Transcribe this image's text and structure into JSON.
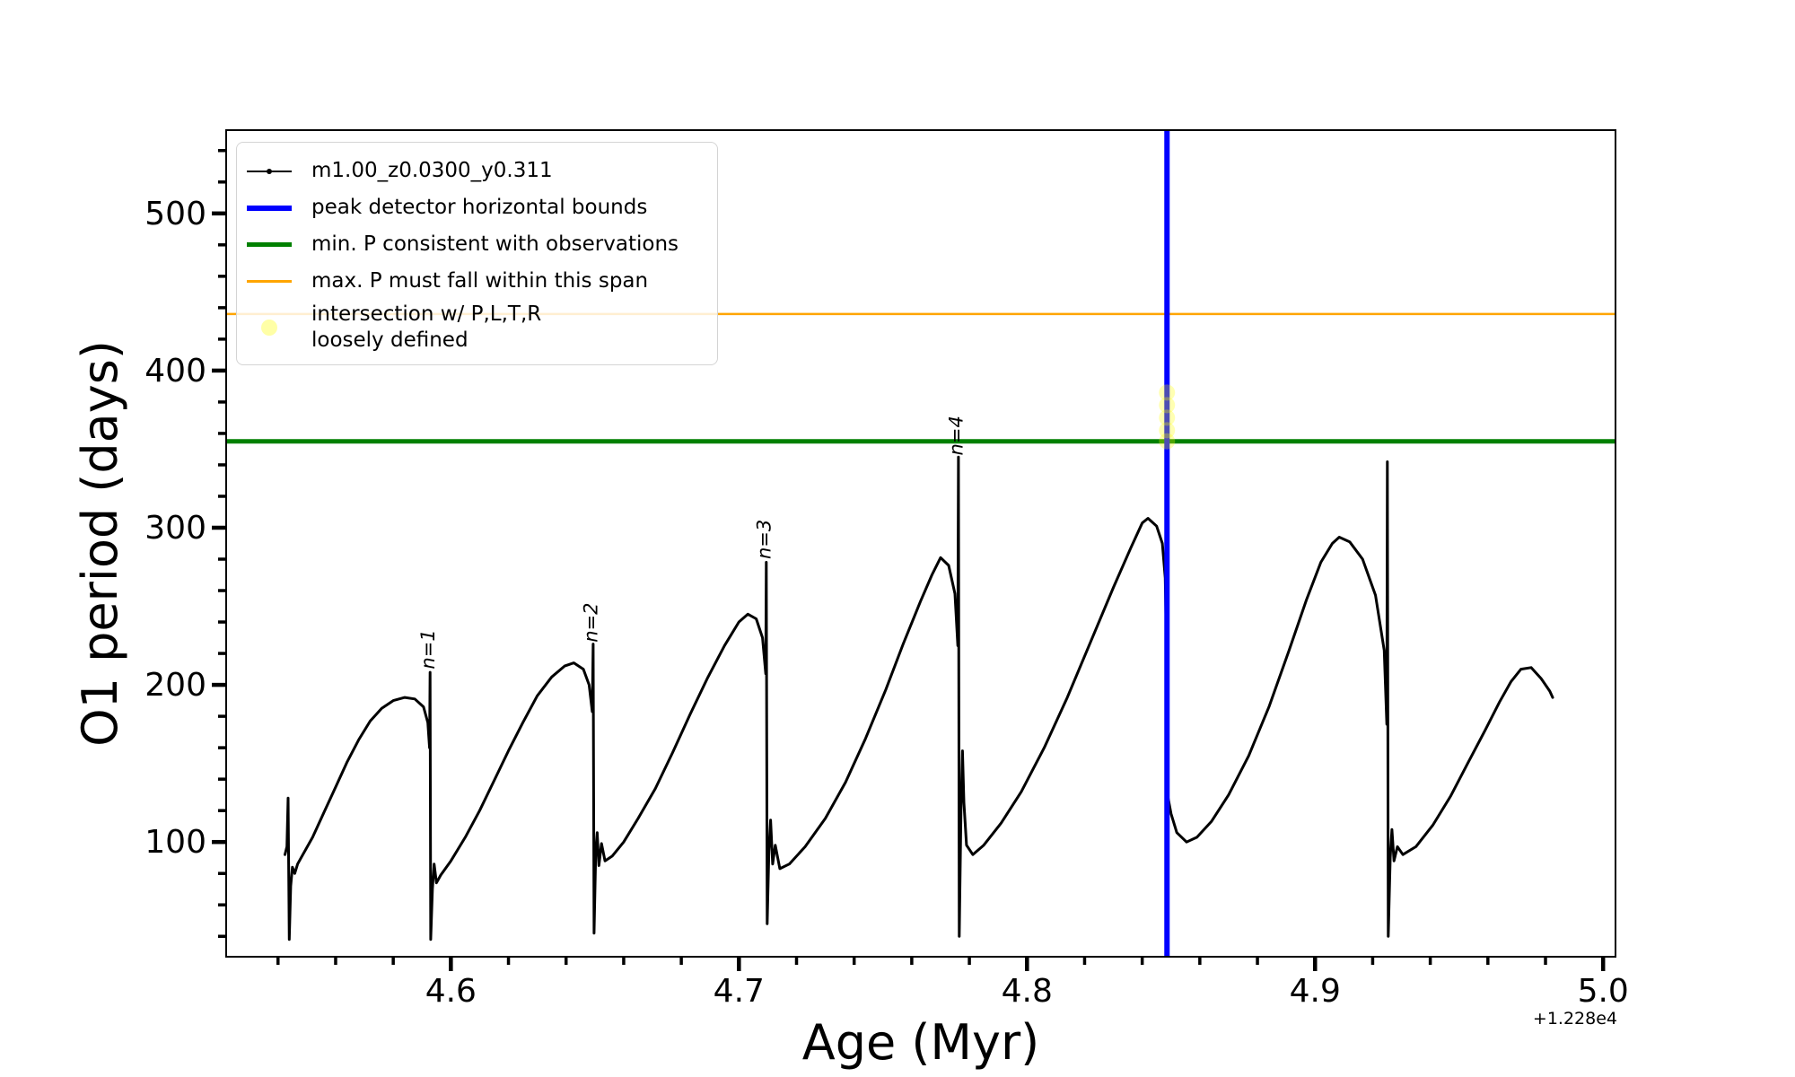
{
  "chart_data": {
    "type": "line",
    "title": "",
    "xlabel": "Age (Myr)",
    "ylabel": "O1 period (days)",
    "x_offset_text": "+1.228e4",
    "xlim": [
      4.522,
      5.0043
    ],
    "ylim": [
      27,
      553
    ],
    "xticks": [
      4.6,
      4.7,
      4.8,
      4.9,
      5.0
    ],
    "xtick_labels": [
      "4.6",
      "4.7",
      "4.8",
      "4.9",
      "5.0"
    ],
    "x_minor_step": 0.02,
    "yticks": [
      100,
      200,
      300,
      400,
      500
    ],
    "ytick_labels": [
      "100",
      "200",
      "300",
      "400",
      "500"
    ],
    "y_minor_step": 20,
    "grid": false,
    "legend": {
      "position": "upper left",
      "entries": [
        {
          "label": "m1.00_z0.0300_y0.311",
          "handle": "line-with-dot-marker",
          "color": "#000000"
        },
        {
          "label": "peak detector horizontal bounds",
          "handle": "thick-line",
          "color": "#0000ff"
        },
        {
          "label": "min. P consistent with observations",
          "handle": "thick-line",
          "color": "#008000"
        },
        {
          "label": "max. P must fall within this span",
          "handle": "thin-line",
          "color": "#ffa500"
        },
        {
          "label": "intersection w/ P,L,T,R loosely defined",
          "handle": "circle-marker",
          "color": "#ffff00",
          "label_lines": [
            "intersection w/ P,L,T,R",
            "loosely defined"
          ]
        }
      ]
    },
    "series": [
      {
        "name": "m1.00_z0.0300_y0.311",
        "color": "#000000",
        "width": 3,
        "points": [
          [
            4.5424,
            92
          ],
          [
            4.5431,
            97
          ],
          [
            4.5435,
            128
          ],
          [
            4.5439,
            38
          ],
          [
            4.5444,
            72
          ],
          [
            4.545,
            84
          ],
          [
            4.5458,
            80
          ],
          [
            4.5468,
            86
          ],
          [
            4.548,
            90
          ],
          [
            4.552,
            103
          ],
          [
            4.556,
            119
          ],
          [
            4.56,
            135
          ],
          [
            4.564,
            151
          ],
          [
            4.568,
            165
          ],
          [
            4.572,
            177
          ],
          [
            4.576,
            185
          ],
          [
            4.58,
            190
          ],
          [
            4.584,
            192
          ],
          [
            4.5875,
            191
          ],
          [
            4.5905,
            186
          ],
          [
            4.592,
            176
          ],
          [
            4.5926,
            160
          ],
          [
            4.5928,
            208
          ],
          [
            4.593,
            38
          ],
          [
            4.5936,
            70
          ],
          [
            4.5942,
            86
          ],
          [
            4.595,
            74
          ],
          [
            4.5965,
            79
          ],
          [
            4.6,
            88
          ],
          [
            4.605,
            103
          ],
          [
            4.61,
            120
          ],
          [
            4.615,
            139
          ],
          [
            4.62,
            158
          ],
          [
            4.625,
            176
          ],
          [
            4.63,
            193
          ],
          [
            4.635,
            205
          ],
          [
            4.6395,
            212
          ],
          [
            4.6427,
            214
          ],
          [
            4.646,
            210
          ],
          [
            4.648,
            200
          ],
          [
            4.6491,
            183
          ],
          [
            4.6494,
            226
          ],
          [
            4.6497,
            42
          ],
          [
            4.6503,
            94
          ],
          [
            4.6508,
            106
          ],
          [
            4.6514,
            85
          ],
          [
            4.6523,
            99
          ],
          [
            4.6535,
            88
          ],
          [
            4.656,
            91
          ],
          [
            4.66,
            100
          ],
          [
            4.665,
            115
          ],
          [
            4.671,
            134
          ],
          [
            4.677,
            157
          ],
          [
            4.683,
            181
          ],
          [
            4.689,
            204
          ],
          [
            4.695,
            225
          ],
          [
            4.7,
            240
          ],
          [
            4.7031,
            245
          ],
          [
            4.706,
            242
          ],
          [
            4.7082,
            230
          ],
          [
            4.7093,
            207
          ],
          [
            4.7095,
            278
          ],
          [
            4.7098,
            48
          ],
          [
            4.7104,
            94
          ],
          [
            4.711,
            114
          ],
          [
            4.7117,
            86
          ],
          [
            4.7126,
            98
          ],
          [
            4.7142,
            83
          ],
          [
            4.7175,
            86
          ],
          [
            4.723,
            97
          ],
          [
            4.73,
            115
          ],
          [
            4.737,
            138
          ],
          [
            4.744,
            166
          ],
          [
            4.751,
            197
          ],
          [
            4.757,
            226
          ],
          [
            4.763,
            253
          ],
          [
            4.767,
            270
          ],
          [
            4.77,
            281
          ],
          [
            4.7728,
            276
          ],
          [
            4.775,
            258
          ],
          [
            4.776,
            225
          ],
          [
            4.7762,
            345
          ],
          [
            4.7765,
            40
          ],
          [
            4.7771,
            122
          ],
          [
            4.7776,
            158
          ],
          [
            4.7781,
            125
          ],
          [
            4.779,
            98
          ],
          [
            4.7812,
            92
          ],
          [
            4.785,
            98
          ],
          [
            4.791,
            112
          ],
          [
            4.798,
            132
          ],
          [
            4.806,
            160
          ],
          [
            4.814,
            192
          ],
          [
            4.822,
            227
          ],
          [
            4.83,
            262
          ],
          [
            4.836,
            287
          ],
          [
            4.84,
            303
          ],
          [
            4.842,
            306
          ],
          [
            4.845,
            301
          ],
          [
            4.847,
            290
          ],
          [
            4.848,
            268
          ],
          [
            4.8484,
            225
          ],
          [
            4.8486,
            40
          ],
          [
            4.8489,
            129
          ],
          [
            4.85,
            118
          ],
          [
            4.852,
            106
          ],
          [
            4.8554,
            100
          ],
          [
            4.859,
            103
          ],
          [
            4.864,
            113
          ],
          [
            4.87,
            130
          ],
          [
            4.877,
            155
          ],
          [
            4.884,
            186
          ],
          [
            4.891,
            222
          ],
          [
            4.897,
            254
          ],
          [
            4.902,
            278
          ],
          [
            4.906,
            290
          ],
          [
            4.9084,
            294
          ],
          [
            4.912,
            291
          ],
          [
            4.9165,
            280
          ],
          [
            4.921,
            257
          ],
          [
            4.924,
            222
          ],
          [
            4.9249,
            175
          ],
          [
            4.9251,
            342
          ],
          [
            4.9254,
            40
          ],
          [
            4.9261,
            90
          ],
          [
            4.9267,
            108
          ],
          [
            4.9274,
            88
          ],
          [
            4.9286,
            97
          ],
          [
            4.9305,
            92
          ],
          [
            4.935,
            97
          ],
          [
            4.941,
            111
          ],
          [
            4.947,
            129
          ],
          [
            4.953,
            150
          ],
          [
            4.959,
            171
          ],
          [
            4.964,
            189
          ],
          [
            4.968,
            202
          ],
          [
            4.9715,
            210
          ],
          [
            4.975,
            211
          ],
          [
            4.9785,
            204
          ],
          [
            4.9815,
            196
          ],
          [
            4.9825,
            192
          ]
        ]
      }
    ],
    "vlines": [
      {
        "x": 4.8486,
        "color": "#0000ff",
        "width": 6,
        "label": "peak detector horizontal bounds"
      }
    ],
    "hlines": [
      {
        "y": 355,
        "color": "#008000",
        "width": 5,
        "label": "min. P consistent with observations"
      },
      {
        "y": 436,
        "color": "#ffa500",
        "width": 2.5,
        "label": "max. P must fall within this span"
      }
    ],
    "intersection_markers": {
      "label": "intersection w/ P,L,T,R loosely defined",
      "color": "#ffff00",
      "opacity": 0.3,
      "radius": 9,
      "points": [
        [
          4.8486,
          386
        ],
        [
          4.8486,
          378
        ],
        [
          4.8486,
          370
        ],
        [
          4.8486,
          362
        ],
        [
          4.8486,
          355
        ]
      ]
    },
    "annotations": [
      {
        "text": "n=1",
        "x": 4.593,
        "y": 210,
        "rotation": 90
      },
      {
        "text": "n=2",
        "x": 4.6496,
        "y": 227,
        "rotation": 90
      },
      {
        "text": "n=3",
        "x": 4.7097,
        "y": 280,
        "rotation": 90
      },
      {
        "text": "n=4",
        "x": 4.7764,
        "y": 346,
        "rotation": 90
      }
    ]
  }
}
